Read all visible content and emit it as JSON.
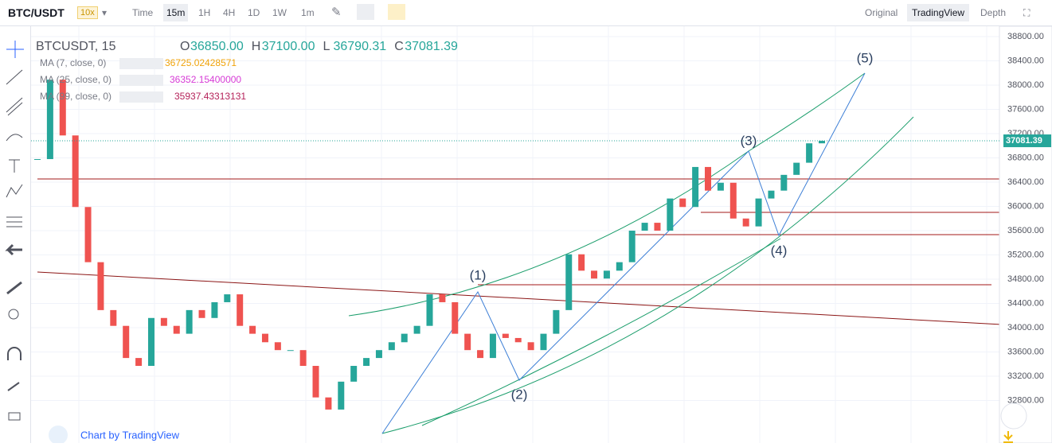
{
  "toolbar": {
    "symbol": "BTC/USDT",
    "leverage": "10x",
    "intervals": [
      "Time",
      "15m",
      "1H",
      "4H",
      "1D",
      "1W",
      "1m"
    ],
    "views": [
      "Original",
      "TradingView",
      "Depth"
    ]
  },
  "legend": {
    "title": "BTCUSDT, 15",
    "ohlc": [
      [
        "O",
        "36850.00"
      ],
      [
        "H",
        "37100.00"
      ],
      [
        "L",
        "36790.31"
      ],
      [
        "C",
        "37081.39"
      ]
    ],
    "mas": [
      {
        "name": "MA (7, close, 0)",
        "value": "36725.02428571",
        "color": "#f0a30a"
      },
      {
        "name": "MA (25, close, 0)",
        "value": "36352.15400000",
        "color": "#d63bd6"
      },
      {
        "name": "MA (99, close, 0)",
        "value": "35937.43313131",
        "color": "#b5225a"
      }
    ]
  },
  "chart": {
    "ylim": [
      32098,
      38905
    ],
    "last_price": 37081.39,
    "yticks": [
      {
        "value": 38800,
        "label": "38800.00"
      },
      {
        "value": 38400,
        "label": "38400.00"
      },
      {
        "value": 38000,
        "label": "38000.00"
      },
      {
        "value": 37600,
        "label": "37600.00"
      },
      {
        "value": 37200,
        "label": "37200.00"
      },
      {
        "value": 36800,
        "label": "36800.00"
      },
      {
        "value": 36400,
        "label": "36400.00"
      },
      {
        "value": 36000,
        "label": "36000.00"
      },
      {
        "value": 35600,
        "label": "35600.00"
      },
      {
        "value": 35200,
        "label": "35200.00"
      },
      {
        "value": 34800,
        "label": "34800.00"
      },
      {
        "value": 34400,
        "label": "34400.00"
      },
      {
        "value": 34000,
        "label": "34000.00"
      },
      {
        "value": 33600,
        "label": "33600.00"
      },
      {
        "value": 33200,
        "label": "33200.00"
      },
      {
        "value": 32800,
        "label": "32800.00"
      }
    ],
    "closes": [
      36780,
      38090,
      37170,
      35990,
      35080,
      34290,
      34030,
      33500,
      33370,
      34160,
      34030,
      33900,
      34290,
      34160,
      34420,
      34550,
      34030,
      33900,
      33760,
      33630,
      33630,
      33370,
      32850,
      32650,
      33110,
      33370,
      33500,
      33630,
      33760,
      33900,
      34030,
      34550,
      34420,
      33900,
      33630,
      33500,
      33900,
      33830,
      33760,
      33630,
      33900,
      34290,
      35210,
      34940,
      34810,
      34940,
      35080,
      35600,
      35730,
      35600,
      36130,
      35990,
      36650,
      36260,
      36390,
      35800,
      35670,
      36130,
      36260,
      36520,
      36720,
      37040,
      37081.39
    ],
    "waves": [
      "(1)",
      "(2)",
      "(3)",
      "(4)",
      "(5)"
    ]
  },
  "footer": "Chart by TradingView"
}
